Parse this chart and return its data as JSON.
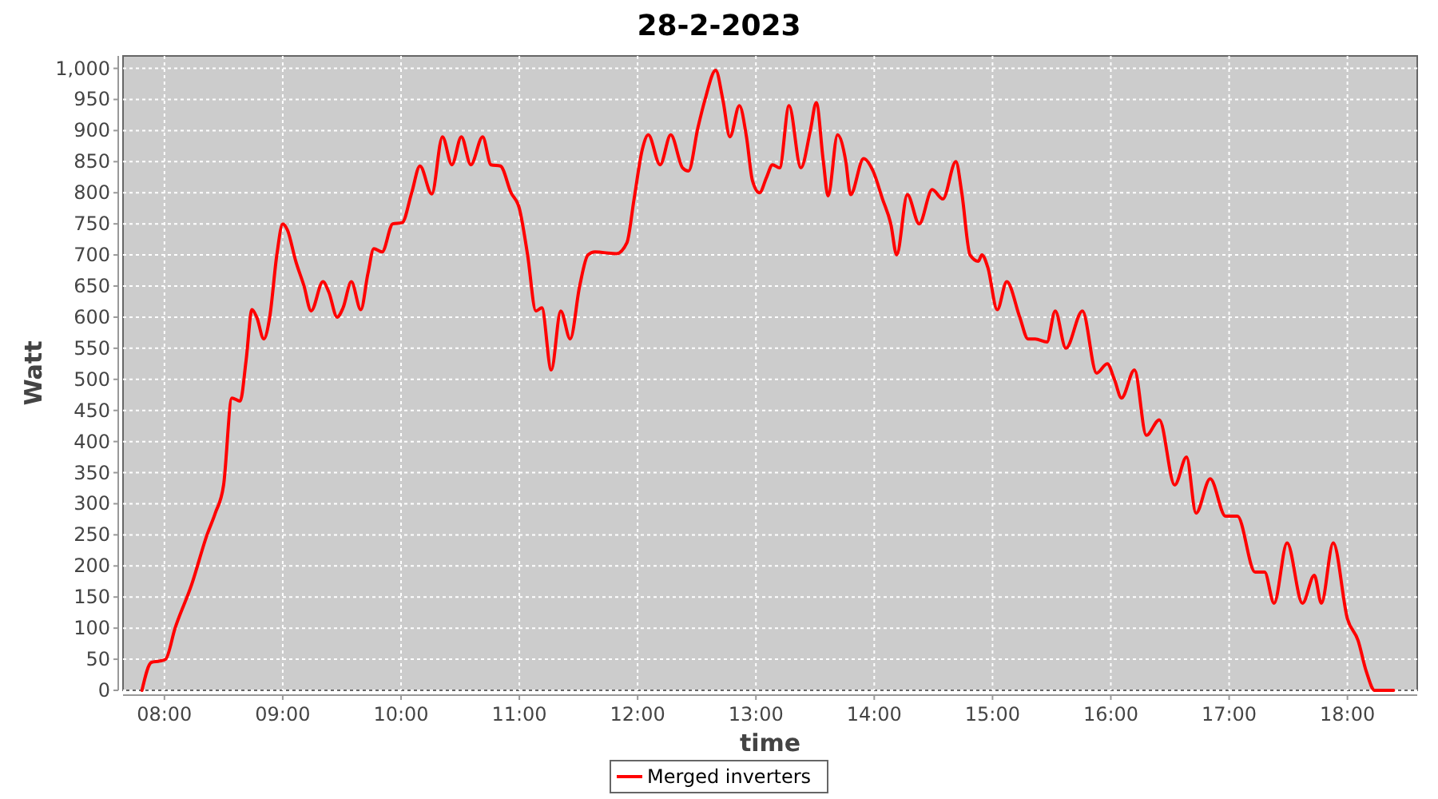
{
  "chart_data": {
    "type": "line",
    "title": "28-2-2023",
    "xlabel": "time",
    "ylabel": "Watt",
    "x": [
      7.81,
      7.89,
      7.96,
      8.01,
      8.09,
      8.23,
      8.36,
      8.43,
      8.5,
      8.57,
      8.64,
      8.69,
      8.74,
      8.78,
      8.84,
      8.89,
      8.95,
      9.0,
      9.04,
      9.11,
      9.18,
      9.24,
      9.34,
      9.39,
      9.46,
      9.51,
      9.58,
      9.66,
      9.72,
      9.77,
      9.84,
      9.93,
      10.01,
      10.09,
      10.16,
      10.26,
      10.35,
      10.43,
      10.51,
      10.59,
      10.69,
      10.76,
      10.84,
      10.93,
      11.0,
      11.07,
      11.14,
      11.19,
      11.27,
      11.35,
      11.43,
      11.51,
      11.58,
      11.64,
      11.82,
      11.91,
      11.97,
      12.04,
      12.09,
      12.19,
      12.28,
      12.38,
      12.43,
      12.51,
      12.57,
      12.66,
      12.72,
      12.78,
      12.86,
      12.92,
      12.97,
      13.03,
      13.09,
      13.14,
      13.2,
      13.28,
      13.38,
      13.46,
      13.51,
      13.57,
      13.61,
      13.69,
      13.76,
      13.8,
      13.91,
      13.99,
      14.07,
      14.14,
      14.19,
      14.28,
      14.38,
      14.49,
      14.58,
      14.69,
      14.74,
      14.81,
      14.88,
      14.91,
      14.96,
      15.04,
      15.12,
      15.23,
      15.3,
      15.36,
      15.46,
      15.53,
      15.62,
      15.76,
      15.88,
      15.97,
      16.03,
      16.09,
      16.2,
      16.3,
      16.41,
      16.54,
      16.64,
      16.72,
      16.84,
      16.97,
      17.07,
      17.22,
      17.3,
      17.38,
      17.49,
      17.62,
      17.72,
      17.78,
      17.88,
      18.0,
      18.09,
      18.16,
      18.23,
      18.3,
      18.39
    ],
    "series": [
      {
        "name": "Merged inverters",
        "color": "#ff0000",
        "values": [
          0,
          45,
          47,
          50,
          100,
          170,
          250,
          285,
          330,
          470,
          465,
          530,
          612,
          600,
          565,
          600,
          700,
          750,
          740,
          690,
          650,
          610,
          657,
          640,
          600,
          615,
          657,
          612,
          670,
          710,
          705,
          750,
          752,
          800,
          843,
          798,
          890,
          845,
          890,
          845,
          890,
          845,
          843,
          800,
          775,
          700,
          610,
          615,
          515,
          610,
          565,
          650,
          700,
          705,
          702,
          720,
          790,
          870,
          893,
          845,
          893,
          840,
          835,
          905,
          950,
          997,
          950,
          890,
          940,
          890,
          820,
          800,
          825,
          845,
          840,
          940,
          840,
          900,
          945,
          850,
          795,
          893,
          850,
          797,
          855,
          835,
          790,
          750,
          700,
          797,
          750,
          805,
          790,
          850,
          800,
          700,
          690,
          700,
          680,
          612,
          657,
          600,
          565,
          565,
          560,
          610,
          550,
          610,
          510,
          525,
          500,
          470,
          515,
          410,
          435,
          330,
          375,
          285,
          340,
          280,
          280,
          190,
          190,
          140,
          237,
          140,
          185,
          140,
          237,
          115,
          80,
          30,
          0,
          0,
          0
        ]
      }
    ],
    "xlim": [
      7.65,
      18.59
    ],
    "xticks": [
      {
        "value": 8,
        "label": "08:00"
      },
      {
        "value": 9,
        "label": "09:00"
      },
      {
        "value": 10,
        "label": "10:00"
      },
      {
        "value": 11,
        "label": "11:00"
      },
      {
        "value": 12,
        "label": "12:00"
      },
      {
        "value": 13,
        "label": "13:00"
      },
      {
        "value": 14,
        "label": "14:00"
      },
      {
        "value": 15,
        "label": "15:00"
      },
      {
        "value": 16,
        "label": "16:00"
      },
      {
        "value": 17,
        "label": "17:00"
      },
      {
        "value": 18,
        "label": "18:00"
      }
    ],
    "ylim": [
      0,
      1020
    ],
    "yticks": [
      0,
      50,
      100,
      150,
      200,
      250,
      300,
      350,
      400,
      450,
      500,
      550,
      600,
      650,
      700,
      750,
      800,
      850,
      900,
      950,
      {
        "value": 1000,
        "label": "1,000"
      }
    ],
    "grid": true,
    "legend": "bottom",
    "marker": "none",
    "line_style": "solid"
  }
}
